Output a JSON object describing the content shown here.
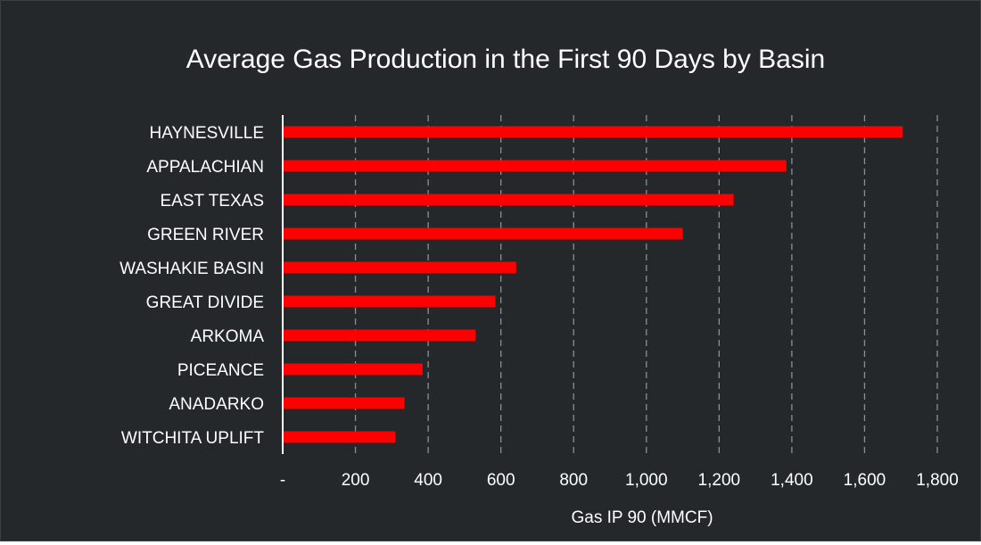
{
  "colors": {
    "background": "#24282b",
    "bar": "#ff0000",
    "grid": "#8a8f94",
    "axis": "#ffffff",
    "text": "#ffffff"
  },
  "chart_data": {
    "type": "bar",
    "orientation": "horizontal",
    "title": "Average Gas Production in the First 90 Days by Basin",
    "xlabel": "Gas IP 90 (MMCF)",
    "ylabel": "",
    "xlim": [
      0,
      1800
    ],
    "grid": true,
    "categories": [
      "HAYNESVILLE",
      "APPALACHIAN",
      "EAST TEXAS",
      "GREEN RIVER",
      "WASHAKIE BASIN",
      "GREAT DIVIDE",
      "ARKOMA",
      "PICEANCE",
      "ANADARKO",
      "WITCHITA UPLIFT"
    ],
    "values": [
      1705,
      1385,
      1240,
      1100,
      642,
      585,
      530,
      385,
      335,
      310
    ],
    "ticks": [
      0,
      200,
      400,
      600,
      800,
      1000,
      1200,
      1400,
      1600,
      1800
    ],
    "tick_labels": [
      "-",
      "200",
      "400",
      "600",
      "800",
      "1,000",
      "1,200",
      "1,400",
      "1,600",
      "1,800"
    ]
  }
}
